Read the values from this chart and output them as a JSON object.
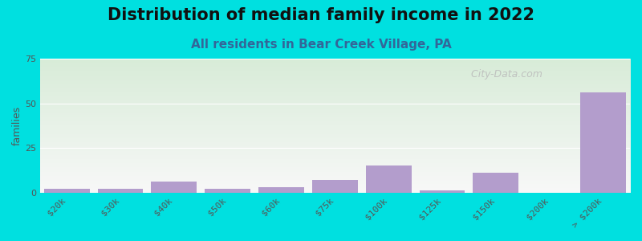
{
  "title": "Distribution of median family income in 2022",
  "subtitle": "All residents in Bear Creek Village, PA",
  "ylabel": "families",
  "categories": [
    "$20k",
    "$30k",
    "$40k",
    "$50k",
    "$60k",
    "$75k",
    "$100k",
    "$125k",
    "$150k",
    "$200k",
    "> $200k"
  ],
  "values": [
    2,
    2,
    6,
    2,
    3,
    7,
    15,
    1,
    11,
    0,
    56
  ],
  "bar_color": "#b39dcc",
  "background_outer": "#00e0e0",
  "background_chart_top": "#f8f8f8",
  "background_chart_bottom": "#d8ecd8",
  "ylim": [
    0,
    75
  ],
  "yticks": [
    0,
    25,
    50,
    75
  ],
  "title_fontsize": 15,
  "subtitle_fontsize": 11,
  "ylabel_fontsize": 9,
  "watermark": "  City-Data.com"
}
